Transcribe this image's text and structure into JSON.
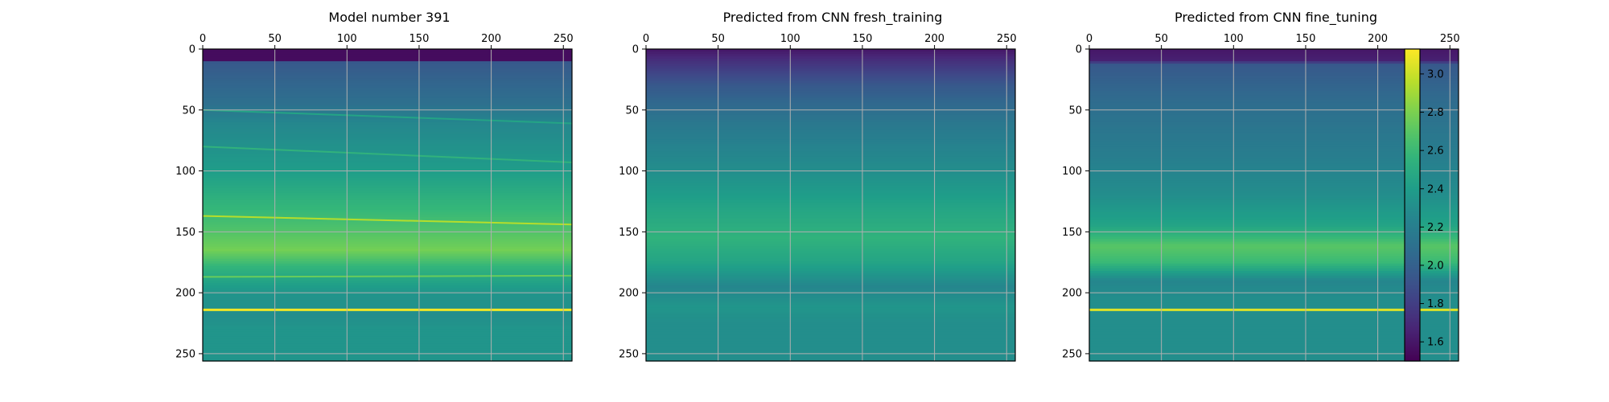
{
  "chart_data": [
    {
      "type": "heatmap",
      "title": "Model number 391",
      "kind": "model",
      "grid": true,
      "xlim": [
        0,
        255
      ],
      "ylim": [
        255,
        0
      ],
      "xticks": [
        "0",
        "50",
        "100",
        "150",
        "200",
        "250"
      ],
      "yticks": [
        "0",
        "50",
        "100",
        "150",
        "200",
        "250"
      ],
      "x_axis_position": "top",
      "layer_boundaries": [
        {
          "y_start": 50,
          "y_end": 61,
          "value": 2.45
        },
        {
          "y_start": 80,
          "y_end": 93,
          "value": 2.55
        },
        {
          "y_start": 137,
          "y_end": 144,
          "value": 2.95
        },
        {
          "y_start": 187,
          "y_end": 186,
          "value": 2.75
        },
        {
          "y_start": 214,
          "y_end": 214,
          "value": 3.1
        }
      ]
    },
    {
      "type": "heatmap",
      "title": "Predicted from CNN fresh_training",
      "kind": "fresh",
      "grid": true,
      "xlim": [
        0,
        255
      ],
      "ylim": [
        255,
        0
      ],
      "xticks": [
        "0",
        "50",
        "100",
        "150",
        "200",
        "250"
      ],
      "yticks": [
        "0",
        "50",
        "100",
        "150",
        "200",
        "250"
      ],
      "x_axis_position": "top"
    },
    {
      "type": "heatmap",
      "title": "Predicted from CNN fine_tuning",
      "kind": "fine",
      "grid": true,
      "xlim": [
        0,
        255
      ],
      "ylim": [
        255,
        0
      ],
      "xticks": [
        "0",
        "50",
        "100",
        "150",
        "200",
        "250"
      ],
      "yticks": [
        "0",
        "50",
        "100",
        "150",
        "200",
        "250"
      ],
      "x_axis_position": "top"
    }
  ],
  "colorbar": {
    "colormap": "viridis",
    "range": [
      1.5,
      3.13
    ],
    "ticks": [
      "1.6",
      "1.8",
      "2.0",
      "2.2",
      "2.4",
      "2.6",
      "2.8",
      "3.0"
    ],
    "tick_values": [
      1.6,
      1.8,
      2.0,
      2.2,
      2.4,
      2.6,
      2.8,
      3.0
    ]
  },
  "colors": {
    "grid": "#b0b0b0",
    "frame": "#000000"
  }
}
